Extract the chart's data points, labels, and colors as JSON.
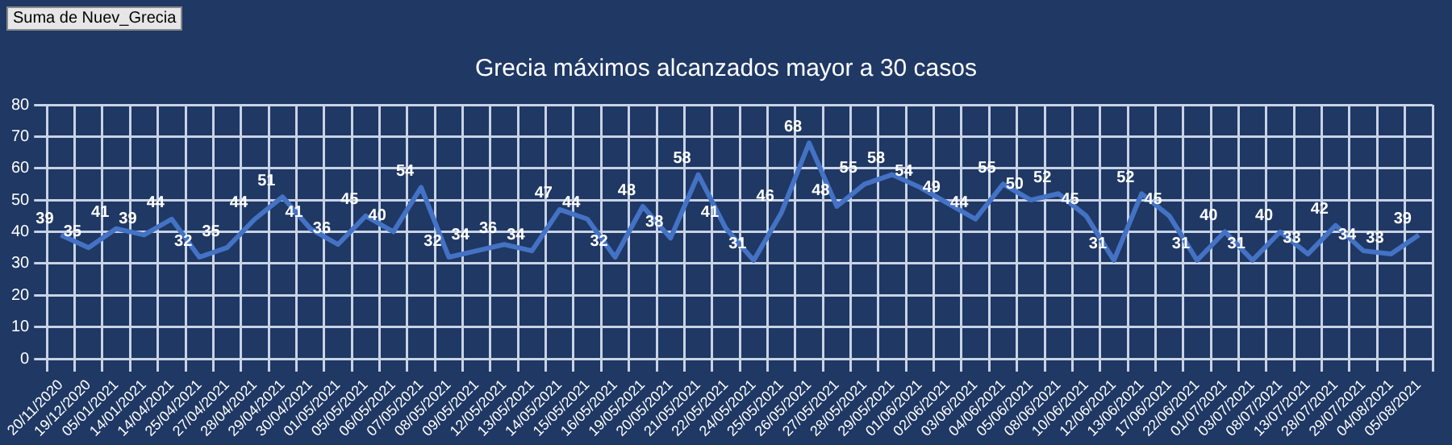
{
  "chart_data": {
    "type": "line",
    "title": "Grecia máximos alcanzados mayor a 30 casos",
    "annotations": [
      "Suma de Nuev_Grecia"
    ],
    "categories": [
      "20/11/2020",
      "19/12/2020",
      "05/01/2021",
      "14/01/2021",
      "14/04/2021",
      "25/04/2021",
      "27/04/2021",
      "28/04/2021",
      "29/04/2021",
      "30/04/2021",
      "01/05/2021",
      "05/05/2021",
      "06/05/2021",
      "07/05/2021",
      "08/05/2021",
      "09/05/2021",
      "12/05/2021",
      "13/05/2021",
      "14/05/2021",
      "15/05/2021",
      "16/05/2021",
      "19/05/2021",
      "20/05/2021",
      "21/05/2021",
      "22/05/2021",
      "24/05/2021",
      "25/05/2021",
      "26/05/2021",
      "27/05/2021",
      "28/05/2021",
      "29/05/2021",
      "01/06/2021",
      "02/06/2021",
      "03/06/2021",
      "04/06/2021",
      "05/06/2021",
      "08/06/2021",
      "10/06/2021",
      "12/06/2021",
      "13/06/2021",
      "17/06/2021",
      "22/06/2021",
      "01/07/2021",
      "03/07/2021",
      "08/07/2021",
      "13/07/2021",
      "28/07/2021",
      "29/07/2021",
      "04/08/2021",
      "05/08/2021"
    ],
    "series": [
      {
        "color": "#4472c4",
        "values": [
          39,
          35,
          41,
          39,
          44,
          32,
          35,
          44,
          51,
          41,
          36,
          45,
          40,
          54,
          32,
          34,
          36,
          34,
          47,
          44,
          32,
          48,
          38,
          58,
          41,
          31,
          46,
          68,
          48,
          55,
          58,
          54,
          49,
          44,
          55,
          50,
          52,
          45,
          31,
          52,
          45,
          31,
          40,
          31,
          40,
          33,
          42,
          34,
          33,
          39
        ]
      }
    ],
    "ylim": [
      0,
      80
    ],
    "yticks": [
      0,
      10,
      20,
      30,
      40,
      50,
      60,
      70,
      80
    ],
    "grid": true,
    "legend": false,
    "marker": "none",
    "line_style": "solid",
    "data_labels": true
  }
}
